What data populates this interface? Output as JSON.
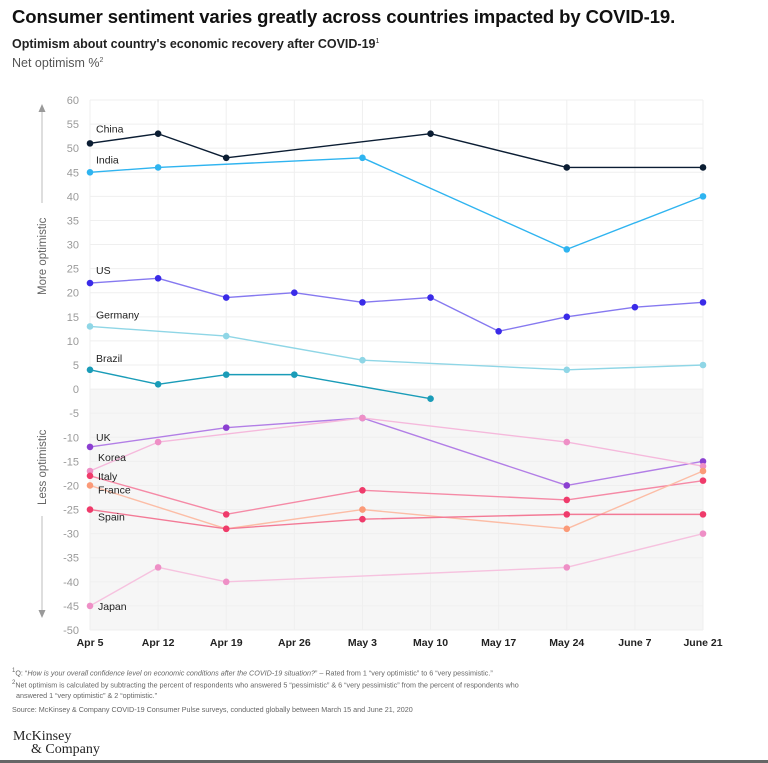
{
  "header": {
    "title": "Consumer sentiment varies greatly across countries impacted by COVID-19.",
    "subtitle": "Optimism about country's economic recovery after COVID-19",
    "subtitle_sup": "1",
    "unit": "Net optimism %",
    "unit_sup": "2"
  },
  "chart_data": {
    "type": "line",
    "title": "Optimism about country's economic recovery after COVID-19",
    "ylabel": "Net optimism %",
    "xlabel": "",
    "categories": [
      "Apr 5",
      "Apr 12",
      "Apr 19",
      "Apr 26",
      "May 3",
      "May 10",
      "May 17",
      "May 24",
      "June 7",
      "June 21"
    ],
    "ylim": [
      -50,
      60
    ],
    "yticks": [
      60,
      55,
      50,
      45,
      40,
      35,
      30,
      25,
      20,
      15,
      10,
      5,
      0,
      -5,
      -10,
      -15,
      -20,
      -25,
      -30,
      -35,
      -40,
      -45,
      -50
    ],
    "grid": true,
    "shaded_region": "below 0",
    "axis_annotations": {
      "upper": "More optimistic",
      "lower": "Less optimistic"
    },
    "legend": "inline labels at left",
    "series": [
      {
        "name": "China",
        "color": "#0b1d33",
        "values": [
          51,
          53,
          48,
          null,
          null,
          53,
          null,
          46,
          null,
          46
        ]
      },
      {
        "name": "India",
        "color": "#2fb4f0",
        "values": [
          45,
          46,
          null,
          null,
          48,
          null,
          null,
          29,
          null,
          40
        ]
      },
      {
        "name": "US",
        "color": "#3a2be8",
        "line_color": "#8679f0",
        "values": [
          22,
          23,
          19,
          20,
          18,
          19,
          12,
          15,
          17,
          18
        ]
      },
      {
        "name": "Germany",
        "color": "#8fd6e6",
        "values": [
          13,
          null,
          11,
          null,
          6,
          null,
          null,
          4,
          null,
          5
        ]
      },
      {
        "name": "Brazil",
        "color": "#1a9cb8",
        "values": [
          4,
          1,
          3,
          3,
          null,
          -2,
          null,
          null,
          null,
          null
        ]
      },
      {
        "name": "UK",
        "color": "#8b3fd1",
        "line_color": "#b27ee6",
        "values": [
          -12,
          null,
          -8,
          null,
          -6,
          null,
          null,
          -20,
          null,
          -15
        ]
      },
      {
        "name": "Korea",
        "color": "#ee8fc6",
        "line_color": "#f5b9dc",
        "values": [
          -17,
          -11,
          null,
          null,
          -6,
          null,
          null,
          -11,
          null,
          -16
        ]
      },
      {
        "name": "Italy",
        "color": "#ef3b6b",
        "line_color": "#f58aa6",
        "values": [
          -18,
          null,
          -26,
          null,
          -21,
          null,
          null,
          -23,
          null,
          -19
        ]
      },
      {
        "name": "France",
        "color": "#fb9a78",
        "line_color": "#fcbda6",
        "values": [
          -20,
          null,
          -29,
          null,
          -25,
          null,
          null,
          -29,
          null,
          -17
        ]
      },
      {
        "name": "Spain",
        "color": "#ef3b6b",
        "line_color": "#f37a96",
        "values": [
          -25,
          null,
          -29,
          null,
          -27,
          null,
          null,
          -26,
          null,
          -26
        ]
      },
      {
        "name": "Japan",
        "color": "#ee8fc6",
        "line_color": "#f6c2df",
        "values": [
          -45,
          -37,
          -40,
          null,
          null,
          null,
          null,
          -37,
          null,
          -30
        ]
      }
    ]
  },
  "footnotes": {
    "fn1_mark": "1",
    "fn1_prefix": "Q: “",
    "fn1_question": "How is your overall confidence level on economic conditions after the COVID-19 situation?",
    "fn1_suffix": "” – Rated from 1 “very optimistic” to 6 “very pessimistic.”",
    "fn2_mark": "2",
    "fn2_text": "Net optimism is calculated by subtracting the percent of respondents who answered 5 “pessimistic” & 6 “very pessimistic” from the percent of respondents who",
    "fn2_text_cont": "answered 1 “very optimistic” & 2 “optimistic.”",
    "source": "Source: McKinsey & Company COVID-19 Consumer Pulse surveys, conducted globally between March 15 and June 21, 2020"
  },
  "logo": {
    "line1": "McKinsey",
    "line2": "& Company"
  }
}
